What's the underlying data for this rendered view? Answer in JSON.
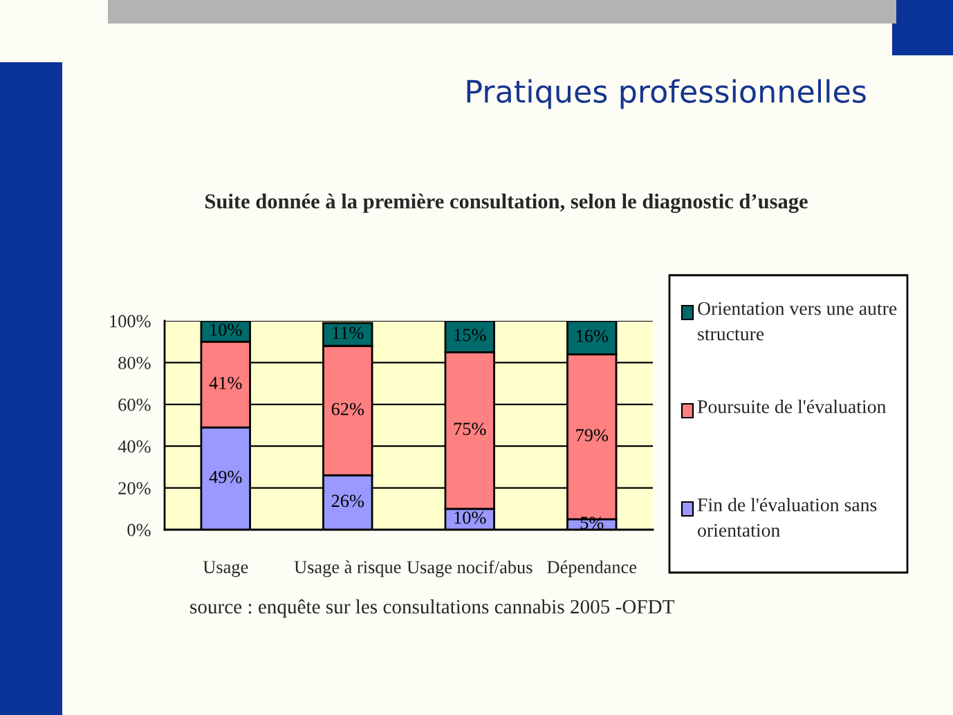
{
  "chart_data": {
    "type": "bar",
    "title": "Pratiques professionnelles",
    "subtitle": "Suite donnée à la première consultation, selon le diagnostic d’usage",
    "categories": [
      "Usage",
      "Usage à risque",
      "Usage nocif/abus",
      "Dépendance"
    ],
    "stacked": true,
    "series": [
      {
        "name": "Fin de l'évaluation sans orientation",
        "color": "#9999ff",
        "values": [
          49,
          26,
          10,
          5
        ],
        "value_labels": [
          "49%",
          "26%",
          "10%",
          "5%"
        ]
      },
      {
        "name": "Poursuite de l'évaluation",
        "color": "#ff8080",
        "values": [
          41,
          62,
          75,
          79
        ],
        "value_labels": [
          "41%",
          "62%",
          "75%",
          "79%"
        ]
      },
      {
        "name": "Orientation vers une autre structure",
        "color": "#006b6b",
        "values": [
          10,
          11,
          15,
          16
        ],
        "value_labels": [
          "10%",
          "11%",
          "15%",
          "16%"
        ]
      }
    ],
    "ylim": [
      0,
      100
    ],
    "yticks": [
      {
        "value": 0,
        "label": "0%"
      },
      {
        "value": 20,
        "label": "20%"
      },
      {
        "value": 40,
        "label": "40%"
      },
      {
        "value": 60,
        "label": "60%"
      },
      {
        "value": 80,
        "label": "80%"
      },
      {
        "value": 100,
        "label": "100%"
      }
    ],
    "grid": "y",
    "legend": "right",
    "annotations": [
      "source : enquête sur les consultations cannabis 2005 -OFDT"
    ]
  }
}
